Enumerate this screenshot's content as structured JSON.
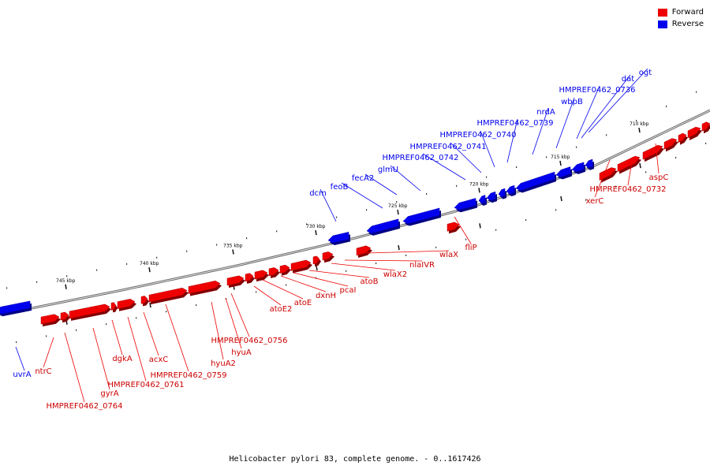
{
  "legend": {
    "forward_label": "Forward",
    "reverse_label": "Reverse",
    "forward_color": "#ee0000",
    "reverse_color": "#0000ee"
  },
  "caption": "Helicobacter pylori 83, complete genome. - 0..1617426",
  "ticks": [
    {
      "kbp": 710,
      "label": "710 kbp"
    },
    {
      "kbp": 715,
      "label": "715 kbp"
    },
    {
      "kbp": 720,
      "label": "720 kbp"
    },
    {
      "kbp": 725,
      "label": "725 kbp"
    },
    {
      "kbp": 730,
      "label": "730 kbp"
    },
    {
      "kbp": 735,
      "label": "735 kbp"
    },
    {
      "kbp": 740,
      "label": "740 kbp"
    },
    {
      "kbp": 745,
      "label": "745 kbp"
    }
  ],
  "reverse_genes": [
    "uvrA",
    "dcm",
    "feoB",
    "fecA2",
    "glmU",
    "HMPREF0462_0742",
    "HMPREF0462_0741",
    "HMPREF0462_0740",
    "HMPREF0462_0739",
    "nrdA",
    "wbpB",
    "HMPREF0462_0736",
    "dat",
    "ogt"
  ],
  "forward_genes": [
    "fliP",
    "wlaX",
    "nlaIVR",
    "wlaX2",
    "atoB",
    "pcaI",
    "dxnH",
    "atoE",
    "atoE2",
    "HMPREF0462_0756",
    "hyuA",
    "hyuA2",
    "HMPREF0462_0759",
    "acxC",
    "HMPREF0462_0761",
    "dgkA",
    "gyrA",
    "HMPREF0462_0764",
    "ntrC",
    "xerC",
    "HMPREF0462_0732",
    "aspC"
  ]
}
